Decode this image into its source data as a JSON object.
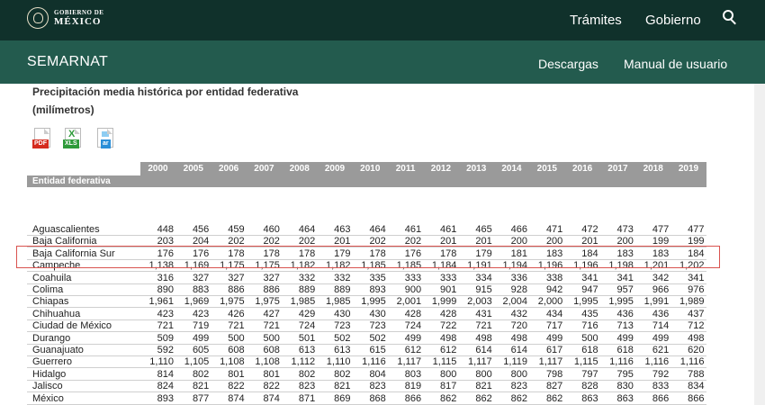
{
  "header": {
    "logo_small": "GOBIERNO DE",
    "logo_big": "MÉXICO",
    "nav": [
      "Trámites",
      "Gobierno"
    ]
  },
  "subheader": {
    "brand": "SEMARNAT",
    "nav": [
      "Descargas",
      "Manual de usuario"
    ]
  },
  "document": {
    "title": "Precipitación media histórica por entidad federativa",
    "unit": "(milímetros)",
    "downloads": [
      {
        "icon": "pdf-file-icon",
        "tag": "PDF"
      },
      {
        "icon": "xls-file-icon",
        "tag": "XLS"
      },
      {
        "icon": "ar-file-icon",
        "tag": "ar"
      }
    ]
  },
  "table": {
    "entity_header": "Entidad federativa",
    "years": [
      "2000",
      "2005",
      "2006",
      "2007",
      "2008",
      "2009",
      "2010",
      "2011",
      "2012",
      "2013",
      "2014",
      "2015",
      "2016",
      "2017",
      "2018",
      "2019"
    ],
    "rows": [
      {
        "name": "Aguascalientes",
        "values": [
          "448",
          "456",
          "459",
          "460",
          "464",
          "463",
          "464",
          "461",
          "461",
          "465",
          "466",
          "471",
          "472",
          "473",
          "477",
          "477"
        ]
      },
      {
        "name": "Baja California",
        "values": [
          "203",
          "204",
          "202",
          "202",
          "202",
          "201",
          "202",
          "202",
          "201",
          "201",
          "200",
          "200",
          "201",
          "200",
          "199",
          "199"
        ]
      },
      {
        "name": "Baja California Sur",
        "values": [
          "176",
          "176",
          "178",
          "178",
          "178",
          "179",
          "178",
          "176",
          "178",
          "179",
          "181",
          "183",
          "184",
          "183",
          "183",
          "184"
        ]
      },
      {
        "name": "Campeche",
        "values": [
          "1,138",
          "1,169",
          "1,175",
          "1,175",
          "1,182",
          "1,182",
          "1,185",
          "1,185",
          "1,184",
          "1,191",
          "1,194",
          "1,196",
          "1,196",
          "1,198",
          "1,201",
          "1,202"
        ]
      },
      {
        "name": "Coahuila",
        "values": [
          "316",
          "327",
          "327",
          "327",
          "332",
          "332",
          "335",
          "333",
          "333",
          "334",
          "336",
          "338",
          "341",
          "341",
          "342",
          "341"
        ]
      },
      {
        "name": "Colima",
        "values": [
          "890",
          "883",
          "886",
          "886",
          "889",
          "889",
          "893",
          "900",
          "901",
          "915",
          "928",
          "942",
          "947",
          "957",
          "966",
          "976"
        ]
      },
      {
        "name": "Chiapas",
        "values": [
          "1,961",
          "1,969",
          "1,975",
          "1,975",
          "1,985",
          "1,985",
          "1,995",
          "2,001",
          "1,999",
          "2,003",
          "2,004",
          "2,000",
          "1,995",
          "1,995",
          "1,991",
          "1,989"
        ]
      },
      {
        "name": "Chihuahua",
        "values": [
          "423",
          "423",
          "426",
          "427",
          "429",
          "430",
          "430",
          "428",
          "428",
          "431",
          "432",
          "434",
          "435",
          "436",
          "436",
          "437"
        ]
      },
      {
        "name": "Ciudad de México",
        "values": [
          "721",
          "719",
          "721",
          "721",
          "724",
          "723",
          "723",
          "724",
          "722",
          "721",
          "720",
          "717",
          "716",
          "713",
          "714",
          "712"
        ]
      },
      {
        "name": "Durango",
        "values": [
          "509",
          "499",
          "500",
          "500",
          "501",
          "502",
          "502",
          "499",
          "498",
          "498",
          "498",
          "499",
          "500",
          "499",
          "499",
          "498"
        ]
      },
      {
        "name": "Guanajuato",
        "values": [
          "592",
          "605",
          "608",
          "608",
          "613",
          "613",
          "615",
          "612",
          "612",
          "614",
          "614",
          "617",
          "618",
          "618",
          "621",
          "620"
        ]
      },
      {
        "name": "Guerrero",
        "values": [
          "1,110",
          "1,105",
          "1,108",
          "1,108",
          "1,112",
          "1,110",
          "1,116",
          "1,117",
          "1,115",
          "1,117",
          "1,119",
          "1,117",
          "1,115",
          "1,116",
          "1,116",
          "1,116"
        ]
      },
      {
        "name": "Hidalgo",
        "values": [
          "814",
          "802",
          "801",
          "801",
          "802",
          "802",
          "804",
          "803",
          "800",
          "800",
          "800",
          "798",
          "797",
          "795",
          "792",
          "788"
        ]
      },
      {
        "name": "Jalisco",
        "values": [
          "824",
          "821",
          "822",
          "822",
          "823",
          "821",
          "823",
          "819",
          "817",
          "821",
          "823",
          "827",
          "828",
          "830",
          "833",
          "834"
        ]
      },
      {
        "name": "México",
        "values": [
          "893",
          "877",
          "874",
          "874",
          "871",
          "869",
          "868",
          "866",
          "862",
          "862",
          "862",
          "862",
          "863",
          "863",
          "866",
          "866"
        ]
      }
    ],
    "highlight_row": "Baja California Sur"
  },
  "colors": {
    "topbar": "#10312b",
    "subbar": "#235b4e",
    "table_header": "#9a9a9a",
    "highlight": "#d9534f"
  }
}
